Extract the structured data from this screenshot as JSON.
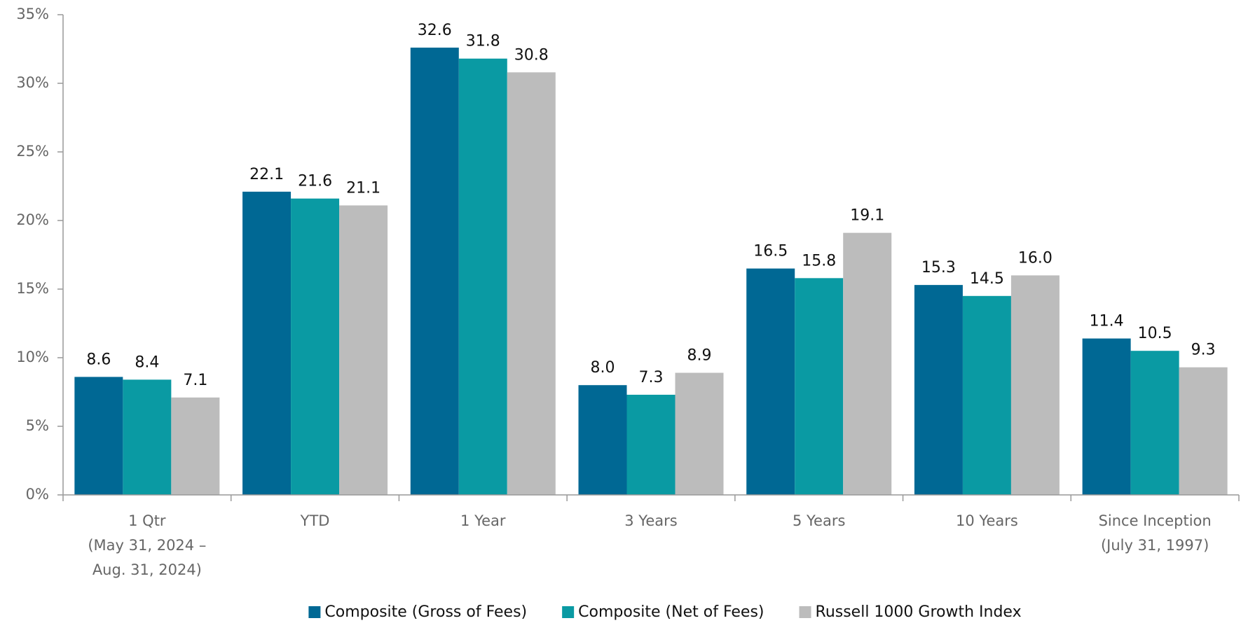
{
  "chart_data": {
    "type": "bar",
    "categories": [
      [
        "1 Qtr",
        "(May 31, 2024 –",
        "Aug. 31, 2024)"
      ],
      [
        "YTD"
      ],
      [
        "1 Year"
      ],
      [
        "3 Years"
      ],
      [
        "5 Years"
      ],
      [
        "10 Years"
      ],
      [
        "Since Inception",
        "(July 31, 1997)"
      ]
    ],
    "series": [
      {
        "name": "Composite (Gross of Fees)",
        "color": "#006894",
        "values": [
          8.6,
          22.1,
          32.6,
          8,
          16.5,
          15.3,
          11.4
        ],
        "value_labels": [
          "8.6",
          "22.1",
          "32.6",
          "8.0",
          "16.5",
          "15.3",
          "11.4"
        ]
      },
      {
        "name": "Composite (Net of Fees)",
        "color": "#0a9aa3",
        "values": [
          8.4,
          21.6,
          31.8,
          7.3,
          15.8,
          14.5,
          10.5
        ],
        "value_labels": [
          "8.4",
          "21.6",
          "31.8",
          "7.3",
          "15.8",
          "14.5",
          "10.5"
        ]
      },
      {
        "name": "Russell 1000 Growth Index",
        "color": "#bcbcbc",
        "values": [
          7.1,
          21.1,
          30.8,
          8.9,
          19.1,
          16,
          9.3
        ],
        "value_labels": [
          "7.1",
          "21.1",
          "30.8",
          "8.9",
          "19.1",
          "16.0",
          "9.3"
        ]
      }
    ],
    "ylim": [
      0,
      35
    ],
    "yticks": [
      {
        "value": 0,
        "label": "0%"
      },
      {
        "value": 5,
        "label": "5%"
      },
      {
        "value": 10,
        "label": "10%"
      },
      {
        "value": 15,
        "label": "15%"
      },
      {
        "value": 20,
        "label": "20%"
      },
      {
        "value": 25,
        "label": "25%"
      },
      {
        "value": 30,
        "label": "30%"
      },
      {
        "value": 35,
        "label": "35%"
      }
    ],
    "legend": "bottom"
  }
}
